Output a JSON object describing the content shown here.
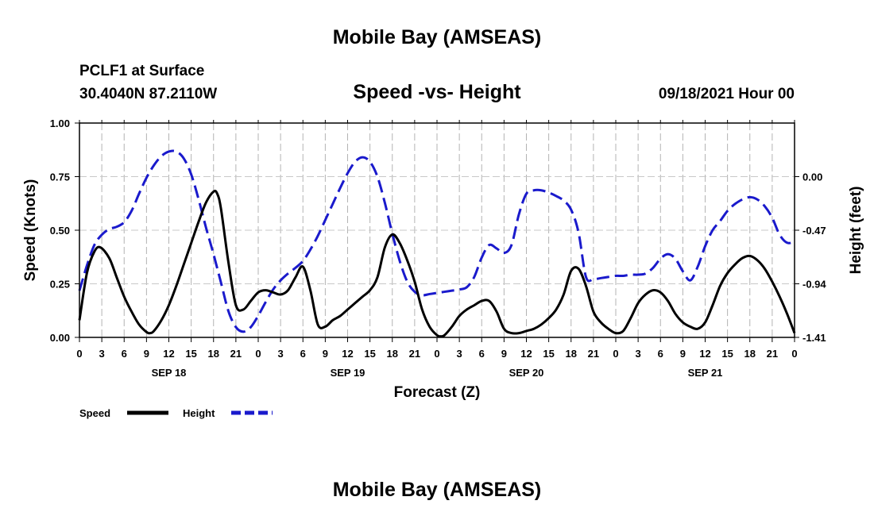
{
  "page": {
    "top_title": "Mobile Bay (AMSEAS)",
    "bottom_title": "Mobile Bay (AMSEAS)",
    "station": "PCLF1 at Surface",
    "coords": "30.4040N  87.2110W",
    "chart_title": "Speed -vs- Height",
    "date": "09/18/2021 Hour 00"
  },
  "chart_data": {
    "type": "line",
    "title": "Speed -vs- Height",
    "xlabel": "Forecast (Z)",
    "ylabel": "Speed (Knots)",
    "y2label": "Height (feet)",
    "xlim": [
      0,
      96
    ],
    "ylim": [
      0,
      1.0
    ],
    "y2lim": [
      -1.41,
      0.47
    ],
    "grid": true,
    "x_ticks": [
      0,
      3,
      6,
      9,
      12,
      15,
      18,
      21,
      24,
      27,
      30,
      33,
      36,
      39,
      42,
      45,
      48,
      51,
      54,
      57,
      60,
      63,
      66,
      69,
      72,
      75,
      78,
      81,
      84,
      87,
      90,
      93,
      96
    ],
    "x_tick_labels": [
      "0",
      "3",
      "6",
      "9",
      "12",
      "15",
      "18",
      "21",
      "0",
      "3",
      "6",
      "9",
      "12",
      "15",
      "18",
      "21",
      "0",
      "3",
      "6",
      "9",
      "12",
      "15",
      "18",
      "21",
      "0",
      "3",
      "6",
      "9",
      "12",
      "15",
      "18",
      "21",
      "0"
    ],
    "y_ticks": [
      0.0,
      0.25,
      0.5,
      0.75,
      1.0
    ],
    "y_tick_labels": [
      "0.00",
      "0.25",
      "0.50",
      "0.75",
      "1.00"
    ],
    "y2_ticks": [
      -1.41,
      -0.94,
      -0.47,
      0.0
    ],
    "y2_tick_labels": [
      "-1.41",
      "-0.94",
      "-0.47",
      "0.00"
    ],
    "day_labels": [
      {
        "x": 12,
        "label": "SEP 18"
      },
      {
        "x": 36,
        "label": "SEP 19"
      },
      {
        "x": 60,
        "label": "SEP 20"
      },
      {
        "x": 84,
        "label": "SEP 21"
      }
    ],
    "legend": [
      {
        "label": "Speed",
        "color": "#000000",
        "style": "solid"
      },
      {
        "label": "Height",
        "color": "#1a1acc",
        "style": "dashed"
      }
    ],
    "series": [
      {
        "name": "Speed",
        "axis": "left",
        "color": "#000000",
        "style": "solid",
        "x": [
          0,
          1,
          2,
          2.8,
          4,
          5,
          6,
          7,
          8,
          9,
          9.5,
          10,
          11,
          12,
          13,
          14,
          15,
          16,
          17,
          18,
          18.5,
          19,
          20,
          21,
          22,
          23,
          24,
          25,
          26,
          27,
          28,
          29,
          30,
          31,
          32,
          33,
          34,
          35,
          36,
          37,
          38,
          39,
          40,
          41,
          42,
          43,
          44,
          45,
          46,
          47,
          48,
          48.5,
          49,
          50,
          51,
          52,
          53,
          54,
          55,
          56,
          57,
          58,
          59,
          60,
          61,
          62,
          63,
          64,
          65,
          66,
          67,
          68,
          69,
          70,
          71,
          72,
          73,
          74,
          75,
          76,
          77,
          78,
          79,
          80,
          81,
          82,
          83,
          84,
          85,
          86,
          87,
          88,
          89,
          90,
          91,
          92,
          93,
          94,
          95,
          96
        ],
        "values": [
          0.08,
          0.3,
          0.4,
          0.42,
          0.37,
          0.28,
          0.19,
          0.12,
          0.06,
          0.025,
          0.02,
          0.03,
          0.08,
          0.15,
          0.24,
          0.34,
          0.44,
          0.54,
          0.63,
          0.68,
          0.67,
          0.6,
          0.35,
          0.15,
          0.13,
          0.17,
          0.21,
          0.22,
          0.21,
          0.2,
          0.22,
          0.28,
          0.33,
          0.22,
          0.06,
          0.05,
          0.08,
          0.1,
          0.13,
          0.16,
          0.19,
          0.22,
          0.28,
          0.42,
          0.48,
          0.44,
          0.36,
          0.26,
          0.13,
          0.05,
          0.01,
          0.005,
          0.01,
          0.05,
          0.1,
          0.13,
          0.15,
          0.17,
          0.17,
          0.12,
          0.04,
          0.02,
          0.02,
          0.03,
          0.04,
          0.06,
          0.09,
          0.13,
          0.2,
          0.31,
          0.32,
          0.24,
          0.12,
          0.07,
          0.04,
          0.02,
          0.03,
          0.09,
          0.16,
          0.2,
          0.22,
          0.21,
          0.17,
          0.11,
          0.07,
          0.05,
          0.04,
          0.07,
          0.15,
          0.24,
          0.3,
          0.34,
          0.37,
          0.38,
          0.36,
          0.32,
          0.26,
          0.19,
          0.11,
          0.02
        ]
      },
      {
        "name": "Height",
        "axis": "right",
        "color": "#1a1acc",
        "style": "dashed",
        "x": [
          0,
          1,
          2,
          3,
          4,
          5,
          6,
          7,
          8,
          9,
          10,
          11,
          12,
          13,
          14,
          15,
          16,
          17,
          18,
          19,
          20,
          21,
          22,
          23,
          24,
          25,
          26,
          27,
          28,
          29,
          30,
          31,
          32,
          33,
          34,
          35,
          36,
          37,
          38,
          39,
          40,
          41,
          42,
          43,
          44,
          45,
          46,
          47,
          48,
          49,
          50,
          51,
          52,
          53,
          54,
          55,
          56,
          57,
          58,
          59,
          60,
          61,
          62,
          63,
          64,
          65,
          66,
          67,
          68,
          69,
          70,
          71,
          72,
          73,
          74,
          75,
          76,
          77,
          78,
          79,
          80,
          81,
          82,
          83,
          84,
          85,
          86,
          87,
          88,
          89,
          90,
          91,
          92,
          93,
          94,
          95,
          96
        ],
        "values": [
          -1.0,
          -0.78,
          -0.6,
          -0.51,
          -0.46,
          -0.44,
          -0.4,
          -0.3,
          -0.15,
          -0.01,
          0.1,
          0.18,
          0.22,
          0.22,
          0.16,
          0.02,
          -0.2,
          -0.45,
          -0.68,
          -0.93,
          -1.18,
          -1.32,
          -1.36,
          -1.32,
          -1.22,
          -1.1,
          -0.99,
          -0.91,
          -0.85,
          -0.8,
          -0.74,
          -0.64,
          -0.52,
          -0.38,
          -0.24,
          -0.1,
          0.03,
          0.13,
          0.17,
          0.13,
          0.0,
          -0.23,
          -0.5,
          -0.74,
          -0.92,
          -1.01,
          -1.04,
          -1.03,
          -1.02,
          -1.01,
          -1.0,
          -0.99,
          -0.97,
          -0.88,
          -0.71,
          -0.6,
          -0.63,
          -0.67,
          -0.6,
          -0.33,
          -0.15,
          -0.12,
          -0.12,
          -0.14,
          -0.17,
          -0.21,
          -0.29,
          -0.49,
          -0.88,
          -0.9,
          -0.89,
          -0.88,
          -0.87,
          -0.87,
          -0.86,
          -0.86,
          -0.85,
          -0.8,
          -0.72,
          -0.68,
          -0.72,
          -0.83,
          -0.91,
          -0.79,
          -0.61,
          -0.47,
          -0.39,
          -0.3,
          -0.24,
          -0.2,
          -0.18,
          -0.2,
          -0.26,
          -0.36,
          -0.51,
          -0.58,
          -0.57
        ]
      }
    ]
  }
}
